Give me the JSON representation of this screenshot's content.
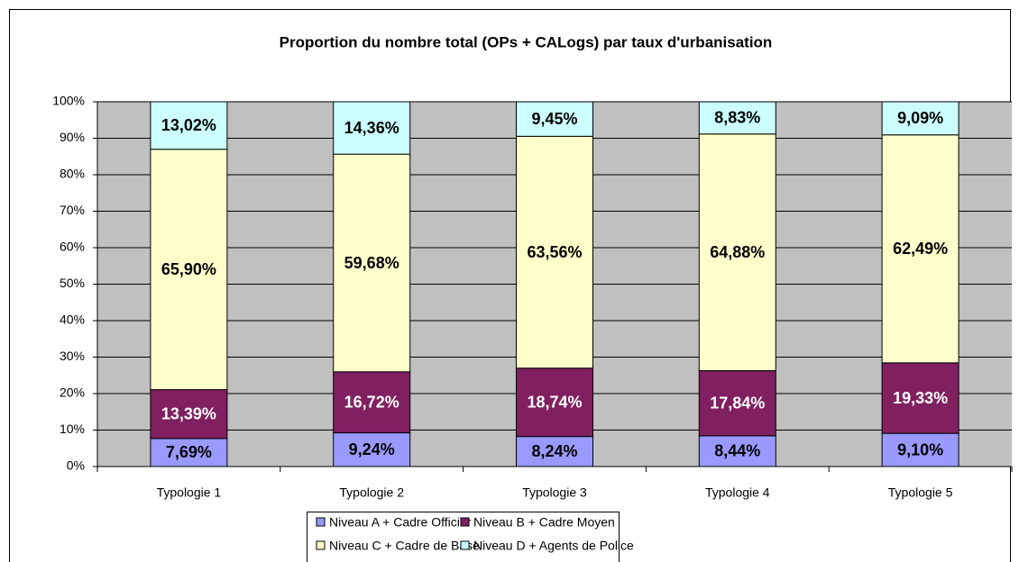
{
  "chart_data": {
    "type": "stacked_bar",
    "title": "Proportion du nombre total (OPs + CALogs) par taux d'urbanisation",
    "categories": [
      "Typologie 1",
      "Typologie 2",
      "Typologie 3",
      "Typologie 4",
      "Typologie 5"
    ],
    "series": [
      {
        "name": "Niveau A + Cadre Officier",
        "color": "#9999ff",
        "values": [
          7.69,
          9.24,
          8.24,
          8.44,
          9.1
        ],
        "value_labels": [
          "7,69%",
          "9,24%",
          "8,24%",
          "8,44%",
          "9,10%"
        ]
      },
      {
        "name": "Niveau B + Cadre Moyen",
        "color": "#802060",
        "values": [
          13.39,
          16.72,
          18.74,
          17.84,
          19.33
        ],
        "value_labels": [
          "13,39%",
          "16,72%",
          "18,74%",
          "17,84%",
          "19,33%"
        ]
      },
      {
        "name": "Niveau C + Cadre de Base",
        "color": "#ffffcc",
        "values": [
          65.9,
          59.68,
          63.56,
          64.88,
          62.49
        ],
        "value_labels": [
          "65,90%",
          "59,68%",
          "63,56%",
          "64,88%",
          "62,49%"
        ]
      },
      {
        "name": "Niveau D + Agents de Police",
        "color": "#ccffff",
        "values": [
          13.02,
          14.36,
          9.45,
          8.83,
          9.09
        ],
        "value_labels": [
          "13,02%",
          "14,36%",
          "9,45%",
          "8,83%",
          "9,09%"
        ]
      }
    ],
    "ylim": [
      0,
      100
    ],
    "yticks": [
      {
        "value": 0,
        "label": "0%"
      },
      {
        "value": 10,
        "label": "10%"
      },
      {
        "value": 20,
        "label": "20%"
      },
      {
        "value": 30,
        "label": "30%"
      },
      {
        "value": 40,
        "label": "40%"
      },
      {
        "value": 50,
        "label": "50%"
      },
      {
        "value": 60,
        "label": "60%"
      },
      {
        "value": 70,
        "label": "70%"
      },
      {
        "value": 80,
        "label": "80%"
      },
      {
        "value": 90,
        "label": "90%"
      },
      {
        "value": 100,
        "label": "100%"
      }
    ],
    "grid": true,
    "legend": "bottom"
  }
}
